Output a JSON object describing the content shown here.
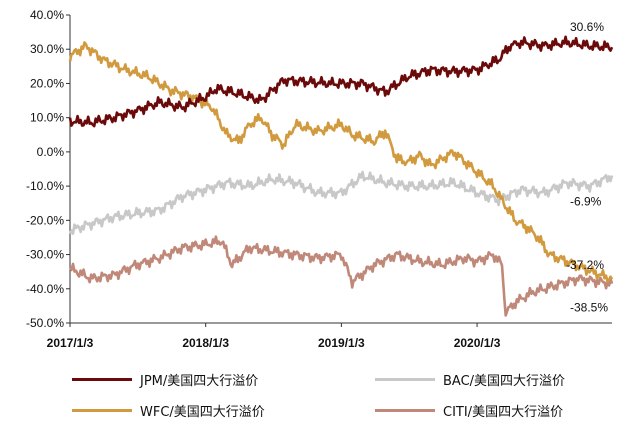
{
  "chart_data": {
    "type": "line",
    "y_ticks": [
      "40.0%",
      "30.0%",
      "20.0%",
      "10.0%",
      "0.0%",
      "-10.0%",
      "-20.0%",
      "-30.0%",
      "-40.0%",
      "-50.0%"
    ],
    "ylim": [
      -50,
      40
    ],
    "x_ticks": [
      "2017/1/3",
      "2018/1/3",
      "2019/1/3",
      "2020/1/3"
    ],
    "x_tick_dates": [
      "2017-01-03",
      "2018-01-03",
      "2019-01-03",
      "2020-01-03"
    ],
    "xlim": [
      "2017-01-03",
      "2020-12-31"
    ],
    "series": [
      {
        "name": "JPM/美国四大行溢价",
        "color": "#6b0a0a",
        "x": [
          "2017-01-03",
          "2017-03-01",
          "2017-05-01",
          "2017-07-01",
          "2017-09-01",
          "2017-11-01",
          "2018-01-03",
          "2018-02-01",
          "2018-04-01",
          "2018-06-01",
          "2018-08-01",
          "2018-10-01",
          "2018-12-01",
          "2019-01-03",
          "2019-03-01",
          "2019-05-01",
          "2019-07-01",
          "2019-09-01",
          "2019-11-01",
          "2020-01-03",
          "2020-03-01",
          "2020-04-01",
          "2020-05-01",
          "2020-07-01",
          "2020-09-01",
          "2020-11-01",
          "2020-12-31"
        ],
        "y": [
          9,
          8.5,
          10,
          12,
          14.5,
          13,
          16,
          18.5,
          17,
          15,
          21,
          20.5,
          20,
          20,
          20,
          17.5,
          22,
          24,
          23.5,
          24,
          27,
          31,
          32,
          31,
          32,
          31,
          30.6
        ]
      },
      {
        "name": "BAC/美国四大行溢价",
        "color": "#c8c8c8",
        "x": [
          "2017-01-03",
          "2017-03-01",
          "2017-05-01",
          "2017-07-01",
          "2017-09-01",
          "2017-11-01",
          "2018-01-03",
          "2018-03-01",
          "2018-05-01",
          "2018-07-01",
          "2018-09-01",
          "2018-11-01",
          "2019-01-03",
          "2019-03-01",
          "2019-05-01",
          "2019-07-01",
          "2019-09-01",
          "2019-11-01",
          "2020-01-03",
          "2020-03-01",
          "2020-05-01",
          "2020-07-01",
          "2020-09-01",
          "2020-11-01",
          "2020-12-31"
        ],
        "y": [
          -23,
          -21,
          -19,
          -18,
          -17,
          -13,
          -11,
          -9,
          -10,
          -8,
          -9,
          -12,
          -12,
          -7,
          -9,
          -10,
          -10,
          -9,
          -12,
          -14,
          -11,
          -12,
          -9,
          -10,
          -6.9
        ]
      },
      {
        "name": "WFC/美国四大行溢价",
        "color": "#d19a3e",
        "x": [
          "2017-01-03",
          "2017-02-15",
          "2017-04-01",
          "2017-06-01",
          "2017-08-01",
          "2017-10-01",
          "2017-12-01",
          "2018-01-20",
          "2018-03-01",
          "2018-04-01",
          "2018-05-01",
          "2018-06-01",
          "2018-07-01",
          "2018-08-01",
          "2018-09-01",
          "2018-11-01",
          "2019-01-03",
          "2019-02-01",
          "2019-04-01",
          "2019-05-01",
          "2019-06-01",
          "2019-07-01",
          "2019-08-01",
          "2019-09-01",
          "2019-11-01",
          "2020-01-03",
          "2020-02-15",
          "2020-03-15",
          "2020-04-15",
          "2020-05-15",
          "2020-06-15",
          "2020-07-15",
          "2020-09-01",
          "2020-10-15",
          "2020-12-31"
        ],
        "y": [
          28,
          31,
          27,
          24,
          22,
          18,
          16,
          13,
          5,
          3,
          8,
          10,
          5,
          2,
          8,
          6,
          8,
          5,
          3,
          6,
          -2,
          -3,
          -1,
          -4,
          0,
          -6,
          -10,
          -15,
          -20,
          -22,
          -25,
          -30,
          -32,
          -34,
          -37.2
        ]
      },
      {
        "name": "CITI/美国四大行溢价",
        "color": "#c08878",
        "x": [
          "2017-01-03",
          "2017-03-01",
          "2017-05-01",
          "2017-07-01",
          "2017-09-01",
          "2017-11-01",
          "2018-01-03",
          "2018-02-15",
          "2018-03-15",
          "2018-05-01",
          "2018-07-01",
          "2018-09-01",
          "2018-11-01",
          "2019-01-03",
          "2019-02-01",
          "2019-04-01",
          "2019-06-01",
          "2019-08-01",
          "2019-10-01",
          "2019-12-01",
          "2020-01-03",
          "2020-02-15",
          "2020-03-10",
          "2020-03-20",
          "2020-04-15",
          "2020-06-01",
          "2020-08-01",
          "2020-10-01",
          "2020-12-31"
        ],
        "y": [
          -34,
          -37,
          -36,
          -33,
          -31,
          -28,
          -27,
          -26,
          -33,
          -28,
          -29,
          -30,
          -31,
          -30,
          -38,
          -33,
          -30,
          -32,
          -33,
          -31,
          -32,
          -30,
          -33,
          -47,
          -44,
          -41,
          -39,
          -37,
          -38.5
        ]
      }
    ],
    "annotations": [
      {
        "text": "30.6%",
        "series": 0
      },
      {
        "text": "-6.9%",
        "series": 1
      },
      {
        "text": "-37.2%",
        "series": 2
      },
      {
        "text": "-38.5%",
        "series": 3
      }
    ]
  }
}
